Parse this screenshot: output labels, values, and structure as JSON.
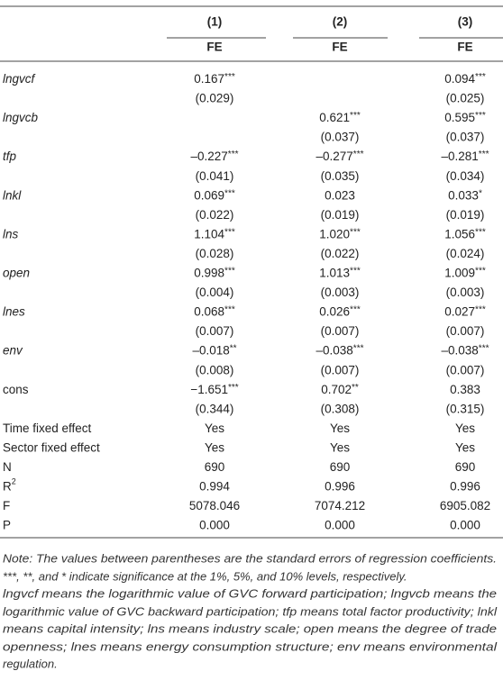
{
  "table": {
    "columns": [
      "(1)",
      "(2)",
      "(3)"
    ],
    "methods": [
      "FE",
      "FE",
      "FE"
    ],
    "rows": [
      {
        "label": "lngvcf",
        "italic": true,
        "cells": [
          [
            "0.167",
            "***"
          ],
          null,
          [
            "0.094",
            "***"
          ]
        ]
      },
      {
        "cells": [
          [
            "(0.029)"
          ],
          null,
          [
            "(0.025)"
          ]
        ]
      },
      {
        "label": "lngvcb",
        "italic": true,
        "cells": [
          null,
          [
            "0.621",
            "***"
          ],
          [
            "0.595",
            "***"
          ]
        ]
      },
      {
        "cells": [
          null,
          [
            "(0.037)"
          ],
          [
            "(0.037)"
          ]
        ]
      },
      {
        "label": "tfp",
        "italic": true,
        "cells": [
          [
            "–0.227",
            "***"
          ],
          [
            "–0.277",
            "***"
          ],
          [
            "–0.281",
            "***"
          ]
        ]
      },
      {
        "cells": [
          [
            "(0.041)"
          ],
          [
            "(0.035)"
          ],
          [
            "(0.034)"
          ]
        ]
      },
      {
        "label": "lnkl",
        "italic": true,
        "cells": [
          [
            "0.069",
            "***"
          ],
          [
            "0.023"
          ],
          [
            "0.033",
            "*"
          ]
        ]
      },
      {
        "cells": [
          [
            "(0.022)"
          ],
          [
            "(0.019)"
          ],
          [
            "(0.019)"
          ]
        ]
      },
      {
        "label": "lns",
        "italic": true,
        "cells": [
          [
            "1.104",
            "***"
          ],
          [
            "1.020",
            "***"
          ],
          [
            "1.056",
            "***"
          ]
        ]
      },
      {
        "cells": [
          [
            "(0.028)"
          ],
          [
            "(0.022)"
          ],
          [
            "(0.024)"
          ]
        ]
      },
      {
        "label": "open",
        "italic": true,
        "cells": [
          [
            "0.998",
            "***"
          ],
          [
            "1.013",
            "***"
          ],
          [
            "1.009",
            "***"
          ]
        ]
      },
      {
        "cells": [
          [
            "(0.004)"
          ],
          [
            "(0.003)"
          ],
          [
            "(0.003)"
          ]
        ]
      },
      {
        "label": "lnes",
        "italic": true,
        "cells": [
          [
            "0.068",
            "***"
          ],
          [
            "0.026",
            "***"
          ],
          [
            "0.027",
            "***"
          ]
        ]
      },
      {
        "cells": [
          [
            "(0.007)"
          ],
          [
            "(0.007)"
          ],
          [
            "(0.007)"
          ]
        ]
      },
      {
        "label": "env",
        "italic": true,
        "cells": [
          [
            "–0.018",
            "**"
          ],
          [
            "–0.038",
            "***"
          ],
          [
            "–0.038",
            "***"
          ]
        ]
      },
      {
        "cells": [
          [
            "(0.008)"
          ],
          [
            "(0.007)"
          ],
          [
            "(0.007)"
          ]
        ]
      },
      {
        "label": "cons",
        "cells": [
          [
            "−1.651",
            "***"
          ],
          [
            "0.702",
            "**"
          ],
          [
            "0.383"
          ]
        ]
      },
      {
        "cells": [
          [
            "(0.344)"
          ],
          [
            "(0.308)"
          ],
          [
            "(0.315)"
          ]
        ]
      },
      {
        "label": "Time fixed effect",
        "cells": [
          [
            "Yes"
          ],
          [
            "Yes"
          ],
          [
            "Yes"
          ]
        ]
      },
      {
        "label": "Sector fixed effect",
        "cells": [
          [
            "Yes"
          ],
          [
            "Yes"
          ],
          [
            "Yes"
          ]
        ]
      },
      {
        "label": "N",
        "cells": [
          [
            "690"
          ],
          [
            "690"
          ],
          [
            "690"
          ]
        ]
      },
      {
        "label": "R",
        "sup": "2",
        "cells": [
          [
            "0.994"
          ],
          [
            "0.996"
          ],
          [
            "0.996"
          ]
        ]
      },
      {
        "label": "F",
        "cells": [
          [
            "5078.046"
          ],
          [
            "7074.212"
          ],
          [
            "6905.082"
          ]
        ]
      },
      {
        "label": "P",
        "cells": [
          [
            "0.000"
          ],
          [
            "0.000"
          ],
          [
            "0.000"
          ]
        ]
      }
    ]
  },
  "note": [
    "Note: The values between parentheses are the standard errors of regression coefficients.",
    "***, **, and * indicate significance at the 1%, 5%, and 10% levels, respectively.",
    "lngvcf means the logarithmic value of GVC forward participation; lngvcb means the",
    "logarithmic value of GVC backward participation; tfp means total factor productivity; lnkl",
    "means capital intensity; lns means industry scale; open means the degree of trade",
    "openness; lnes means energy consumption structure; env means environmental",
    "regulation."
  ]
}
